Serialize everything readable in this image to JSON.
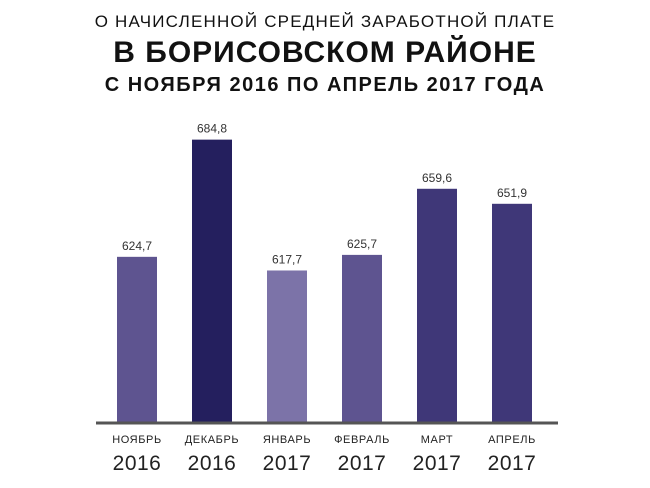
{
  "chart_data": {
    "type": "bar",
    "title_line1": "О НАЧИСЛЕННОЙ СРЕДНЕЙ ЗАРАБОТНОЙ ПЛАТЕ",
    "title_line2": "В БОРИСОВСКОМ РАЙОНЕ",
    "title_line3": "С НОЯБРЯ 2016 ПО АПРЕЛЬ 2017 ГОДА",
    "categories": [
      {
        "month": "НОЯБРЬ",
        "year": "2016"
      },
      {
        "month": "ДЕКАБРЬ",
        "year": "2016"
      },
      {
        "month": "ЯНВАРЬ",
        "year": "2017"
      },
      {
        "month": "ФЕВРАЛЬ",
        "year": "2017"
      },
      {
        "month": "МАРТ",
        "year": "2017"
      },
      {
        "month": "АПРЕЛЬ",
        "year": "2017"
      }
    ],
    "values": [
      624.7,
      684.8,
      617.7,
      625.7,
      659.6,
      651.9
    ],
    "value_labels": [
      "624,7",
      "684,8",
      "617,7",
      "625,7",
      "659,6",
      "651,9"
    ],
    "bar_colors": [
      "#5e5490",
      "#241f5e",
      "#7c73a8",
      "#5e5490",
      "#3f3778",
      "#3f3778"
    ],
    "axis_color": "#555555",
    "ylim": [
      540,
      700
    ],
    "grid": false,
    "legend": "none"
  }
}
